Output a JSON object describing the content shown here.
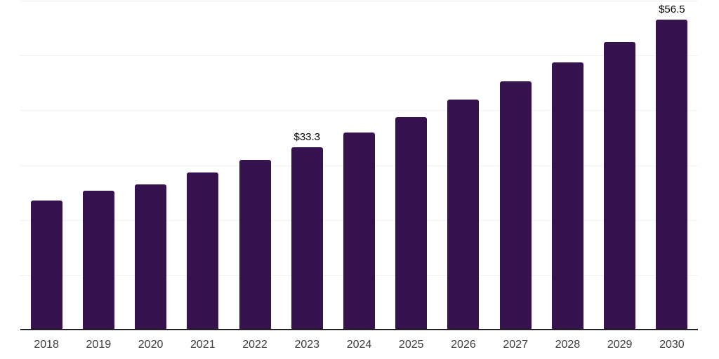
{
  "chart_data": {
    "type": "bar",
    "title": "",
    "xlabel": "",
    "ylabel": "",
    "categories": [
      "2018",
      "2019",
      "2020",
      "2021",
      "2022",
      "2023",
      "2024",
      "2025",
      "2026",
      "2027",
      "2028",
      "2029",
      "2030"
    ],
    "values": [
      23.5,
      25.3,
      26.5,
      28.7,
      31.0,
      33.3,
      35.9,
      38.7,
      42.0,
      45.3,
      48.8,
      52.5,
      56.5
    ],
    "data_labels": [
      {
        "category": "2023",
        "text": "$33.3"
      },
      {
        "category": "2030",
        "text": "$56.5"
      }
    ],
    "value_prefix": "$",
    "ylim": [
      0,
      60
    ],
    "grid_interval": 10,
    "grid": "horizontal",
    "legend": "none",
    "colors": {
      "bar": "#36124E",
      "gridline": "#f0f0f0",
      "axis_line": "#222222",
      "data_label": "#000000",
      "tick_label": "#3c3c3c",
      "background": "#ffffff"
    }
  }
}
